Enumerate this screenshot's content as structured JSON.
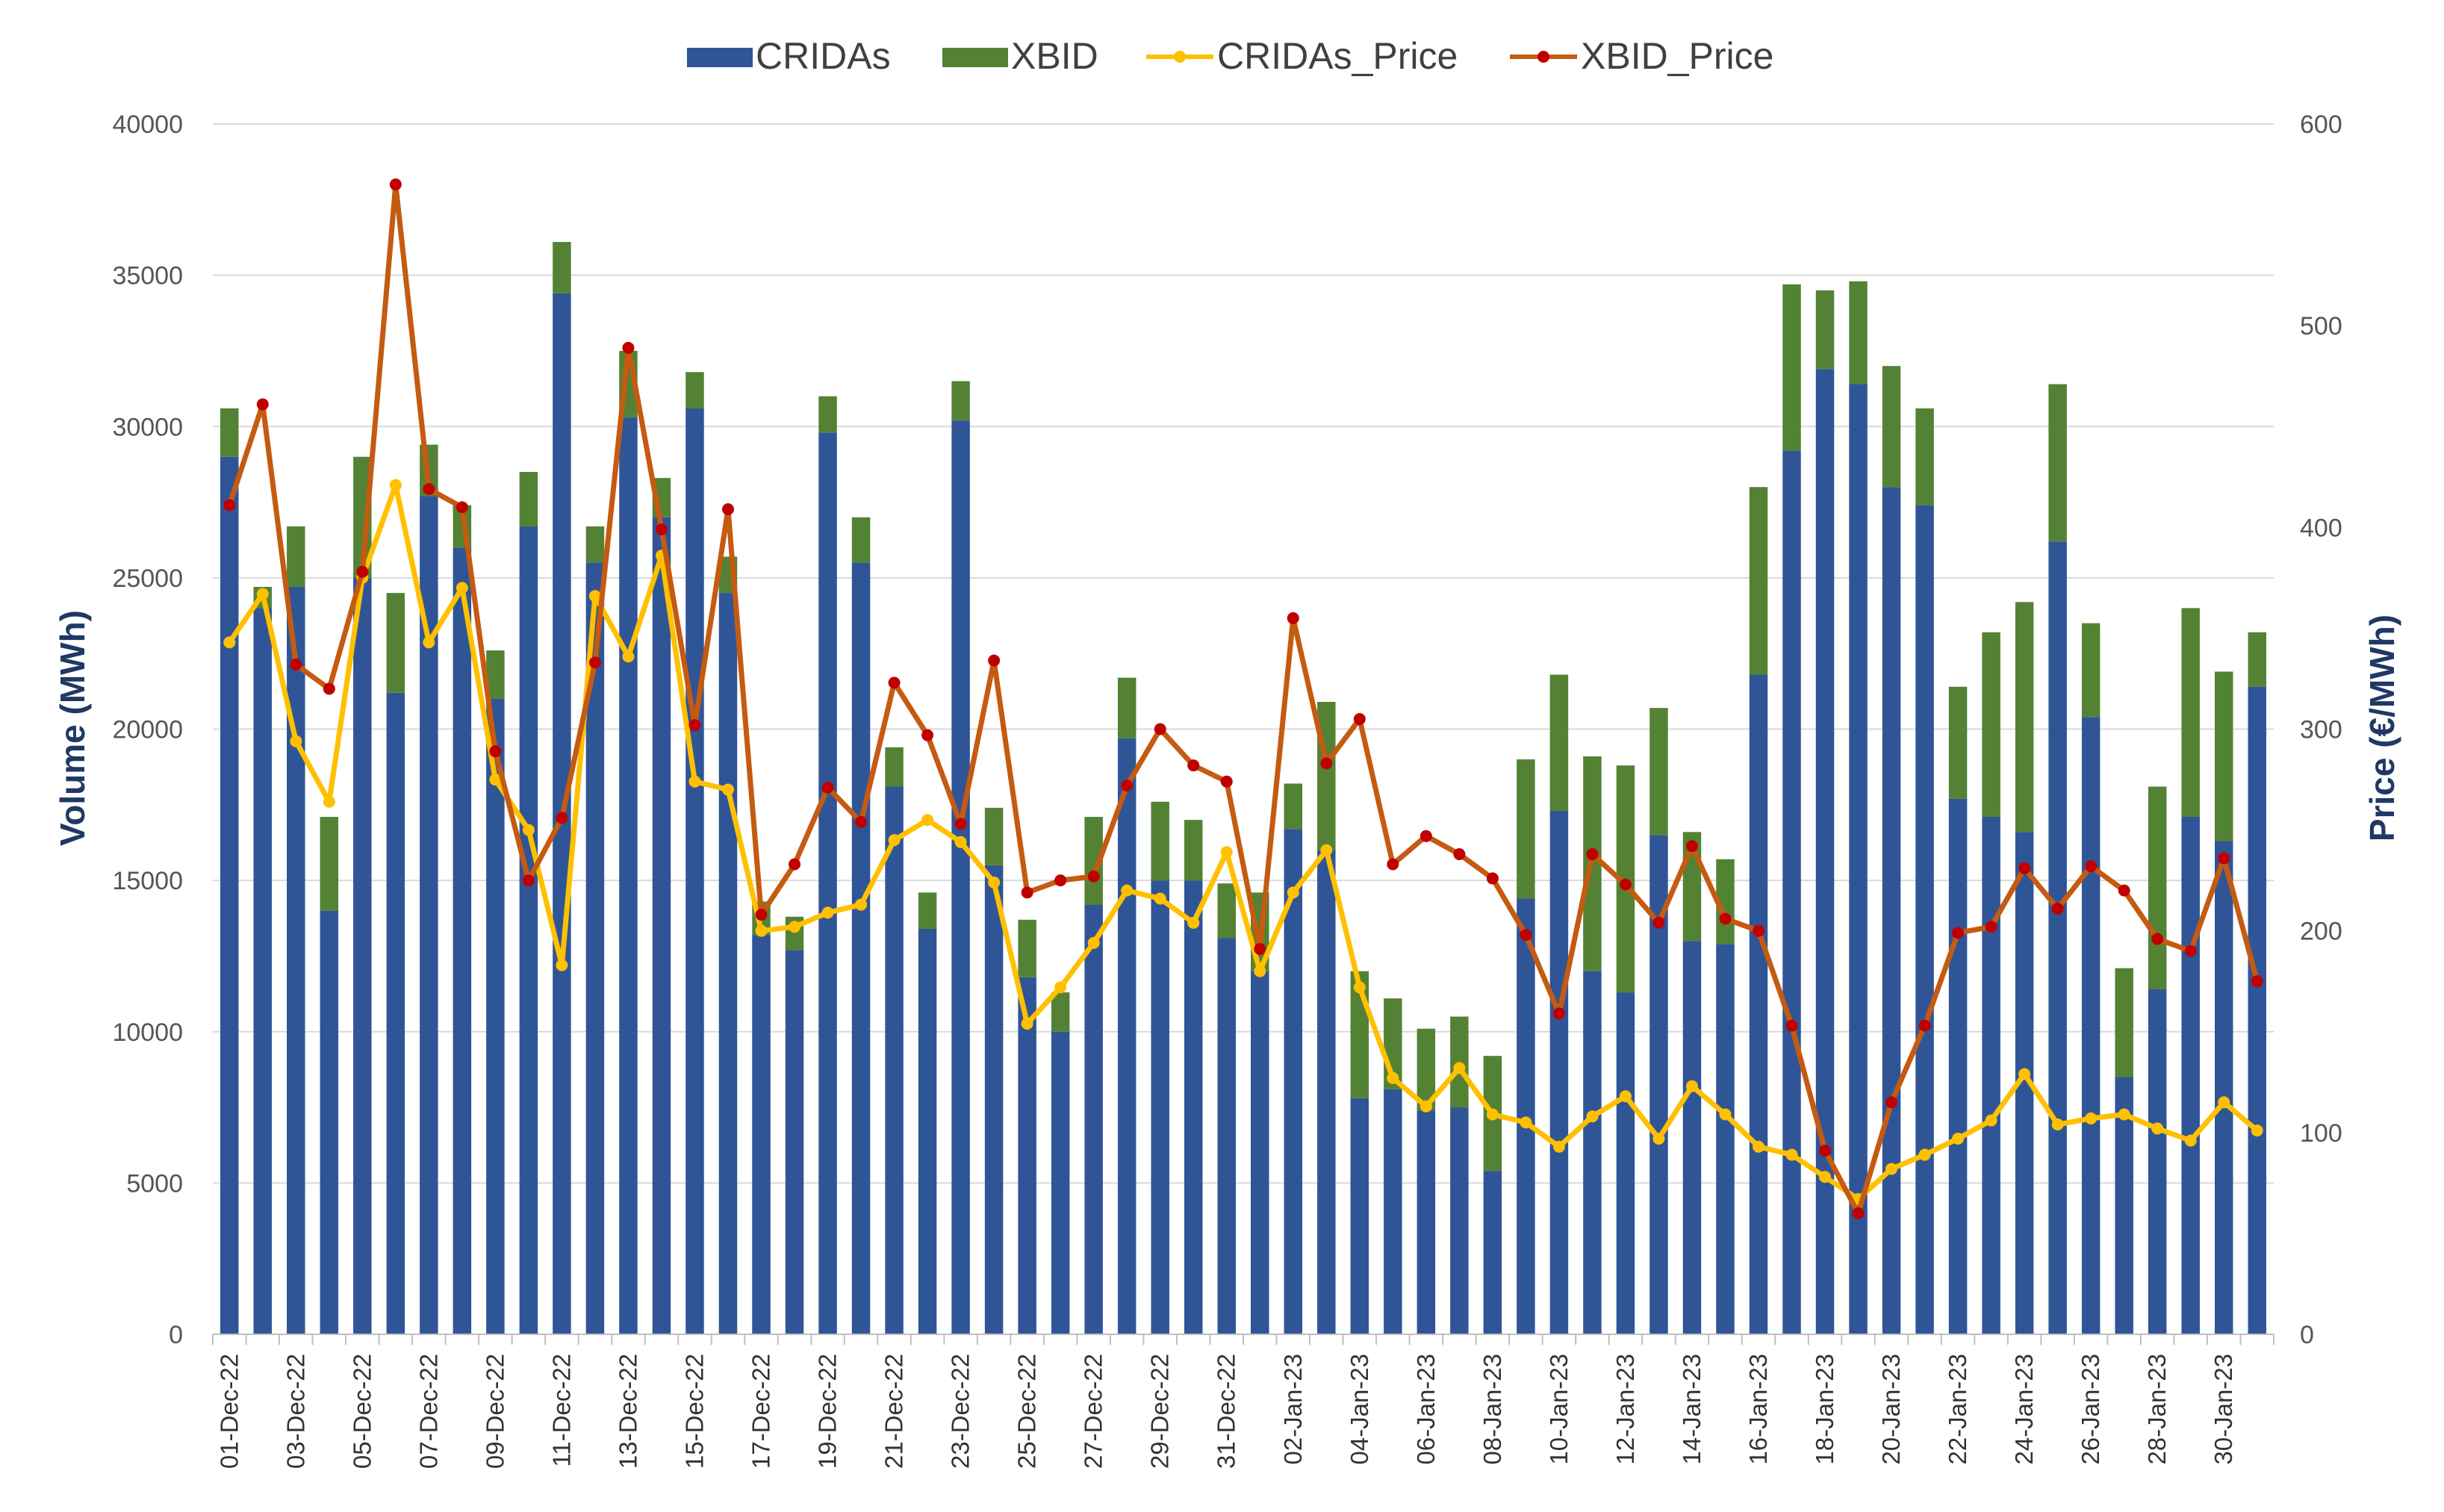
{
  "colors": {
    "cridas": "#2F5597",
    "xbid": "#548235",
    "cridas_price": "#FFC000",
    "xbid_price": "#C55A11",
    "xbid_price_marker": "#C00000"
  },
  "chart_data": {
    "type": "bar",
    "subtype": "stacked bar with price lines on secondary axis",
    "legend": [
      "CRIDAs",
      "XBID",
      "CRIDAs_Price",
      "XBID_Price"
    ],
    "legend_position": "top",
    "ylabel": "Volume (MWh)",
    "y2label": "Price (€/MWh)",
    "ylim": [
      0,
      40000
    ],
    "y2lim": [
      0,
      600
    ],
    "yticks": [
      "0",
      "5000",
      "10000",
      "15000",
      "20000",
      "25000",
      "30000",
      "35000",
      "40000"
    ],
    "y2ticks": [
      "0",
      "100",
      "200",
      "300",
      "400",
      "500",
      "600"
    ],
    "grid": true,
    "categories": [
      "01-Dec-22",
      "02-Dec-22",
      "03-Dec-22",
      "04-Dec-22",
      "05-Dec-22",
      "06-Dec-22",
      "07-Dec-22",
      "08-Dec-22",
      "09-Dec-22",
      "10-Dec-22",
      "11-Dec-22",
      "12-Dec-22",
      "13-Dec-22",
      "14-Dec-22",
      "15-Dec-22",
      "16-Dec-22",
      "17-Dec-22",
      "18-Dec-22",
      "19-Dec-22",
      "20-Dec-22",
      "21-Dec-22",
      "22-Dec-22",
      "23-Dec-22",
      "24-Dec-22",
      "25-Dec-22",
      "26-Dec-22",
      "27-Dec-22",
      "28-Dec-22",
      "29-Dec-22",
      "30-Dec-22",
      "31-Dec-22",
      "01-Jan-23",
      "02-Jan-23",
      "03-Jan-23",
      "04-Jan-23",
      "05-Jan-23",
      "06-Jan-23",
      "07-Jan-23",
      "08-Jan-23",
      "09-Jan-23",
      "10-Jan-23",
      "11-Jan-23",
      "12-Jan-23",
      "13-Jan-23",
      "14-Jan-23",
      "15-Jan-23",
      "16-Jan-23",
      "17-Jan-23",
      "18-Jan-23",
      "19-Jan-23",
      "20-Jan-23",
      "21-Jan-23",
      "22-Jan-23",
      "23-Jan-23",
      "24-Jan-23",
      "25-Jan-23",
      "26-Jan-23",
      "27-Jan-23",
      "28-Jan-23",
      "29-Jan-23",
      "30-Jan-23",
      "31-Jan-23"
    ],
    "labeled_categories": [
      "01-Dec-22",
      "03-Dec-22",
      "05-Dec-22",
      "07-Dec-22",
      "09-Dec-22",
      "11-Dec-22",
      "13-Dec-22",
      "15-Dec-22",
      "17-Dec-22",
      "19-Dec-22",
      "21-Dec-22",
      "23-Dec-22",
      "25-Dec-22",
      "27-Dec-22",
      "29-Dec-22",
      "31-Dec-22",
      "02-Jan-23",
      "04-Jan-23",
      "06-Jan-23",
      "08-Jan-23",
      "10-Jan-23",
      "12-Jan-23",
      "14-Jan-23",
      "16-Jan-23",
      "18-Jan-23",
      "20-Jan-23",
      "22-Jan-23",
      "24-Jan-23",
      "26-Jan-23",
      "28-Jan-23",
      "30-Jan-23"
    ],
    "series": [
      {
        "name": "CRIDAs",
        "type": "bar",
        "axis": "left",
        "values": [
          29000,
          24000,
          24700,
          14000,
          25000,
          21200,
          27700,
          26000,
          21000,
          26700,
          34400,
          25500,
          30300,
          27000,
          30600,
          24500,
          13200,
          12700,
          29800,
          25500,
          18100,
          13400,
          30200,
          15500,
          11800,
          10000,
          14200,
          19700,
          15000,
          15000,
          13100,
          12000,
          16700,
          16000,
          7800,
          8100,
          7400,
          7500,
          5400,
          14400,
          17300,
          12000,
          11300,
          16500,
          13000,
          12900,
          21800,
          29200,
          31900,
          31400,
          28000,
          27400,
          17700,
          17100,
          16600,
          26200,
          20400,
          8500,
          11400,
          17100,
          16300,
          21400
        ]
      },
      {
        "name": "XBID",
        "type": "bar",
        "axis": "left",
        "values": [
          1600,
          700,
          2000,
          3100,
          4000,
          3300,
          1700,
          1400,
          1600,
          1800,
          1700,
          1200,
          2200,
          1300,
          1200,
          1200,
          1100,
          1100,
          1200,
          1500,
          1300,
          1200,
          1300,
          1900,
          1900,
          1300,
          2900,
          2000,
          2600,
          2000,
          1800,
          2600,
          1500,
          4900,
          4200,
          3000,
          2700,
          3000,
          3800,
          4600,
          4500,
          7100,
          7500,
          4200,
          3600,
          2800,
          6200,
          5500,
          2600,
          3400,
          4000,
          3200,
          3700,
          6100,
          7600,
          5200,
          3100,
          3600,
          6700,
          6900,
          5600,
          1800
        ]
      },
      {
        "name": "CRIDAs_Price",
        "type": "line",
        "axis": "right",
        "values": [
          343,
          367,
          294,
          264,
          375,
          421,
          343,
          370,
          275,
          250,
          183,
          366,
          336,
          386,
          274,
          270,
          200,
          202,
          209,
          213,
          245,
          255,
          244,
          224,
          154,
          172,
          194,
          220,
          216,
          204,
          239,
          180,
          219,
          240,
          172,
          127,
          113,
          132,
          109,
          105,
          93,
          108,
          118,
          97,
          123,
          109,
          93,
          89,
          78,
          67,
          82,
          89,
          97,
          106,
          129,
          104,
          107,
          109,
          102,
          96,
          115,
          101
        ]
      },
      {
        "name": "XBID_Price",
        "type": "line",
        "axis": "right",
        "values": [
          411,
          461,
          332,
          320,
          378,
          570,
          419,
          410,
          289,
          225,
          256,
          333,
          489,
          399,
          302,
          409,
          208,
          233,
          271,
          254,
          323,
          297,
          253,
          334,
          219,
          225,
          227,
          272,
          300,
          282,
          274,
          191,
          355,
          283,
          305,
          233,
          247,
          238,
          226,
          198,
          159,
          238,
          223,
          204,
          242,
          206,
          200,
          153,
          91,
          60,
          115,
          153,
          199,
          202,
          231,
          211,
          232,
          220,
          196,
          190,
          236,
          175
        ]
      }
    ]
  }
}
